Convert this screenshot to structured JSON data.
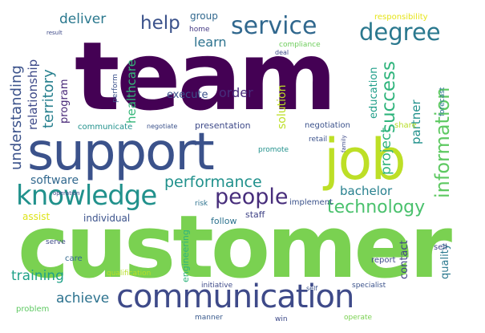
{
  "words": [
    {
      "id": "team",
      "text": "team",
      "color": "#440154"
    },
    {
      "id": "customer",
      "text": "customer",
      "color": "#7ad151"
    },
    {
      "id": "support",
      "text": "support",
      "color": "#3b528b"
    },
    {
      "id": "communication",
      "text": "communication",
      "color": "#3e4a89"
    },
    {
      "id": "job",
      "text": "job",
      "color": "#bddf26"
    },
    {
      "id": "knowledge",
      "text": "knowledge",
      "color": "#21918c"
    },
    {
      "id": "service",
      "text": "service",
      "color": "#31688e"
    },
    {
      "id": "degree",
      "text": "degree",
      "color": "#2a788e"
    },
    {
      "id": "people",
      "text": "people",
      "color": "#472d7b"
    },
    {
      "id": "technology",
      "text": "technology",
      "color": "#4ac16d"
    },
    {
      "id": "information",
      "text": "information",
      "color": "#5ec962"
    },
    {
      "id": "success",
      "text": "success",
      "color": "#2fb47c"
    },
    {
      "id": "help",
      "text": "help",
      "color": "#3b528b"
    },
    {
      "id": "performance",
      "text": "performance",
      "color": "#21918c"
    },
    {
      "id": "training",
      "text": "training",
      "color": "#1fa187"
    },
    {
      "id": "achieve",
      "text": "achieve",
      "color": "#2c728e"
    },
    {
      "id": "understanding",
      "text": "understanding",
      "color": "#3b528b"
    },
    {
      "id": "deliver",
      "text": "deliver",
      "color": "#2a788e"
    },
    {
      "id": "territory",
      "text": "territory",
      "color": "#27808e"
    },
    {
      "id": "relationship",
      "text": "relationship",
      "color": "#3e4a89"
    },
    {
      "id": "program",
      "text": "program",
      "color": "#482878"
    },
    {
      "id": "healthcare",
      "text": "healthcare",
      "color": "#35b779"
    },
    {
      "id": "learn",
      "text": "learn",
      "color": "#2c728e"
    },
    {
      "id": "order",
      "text": "order",
      "color": "#472d7b"
    },
    {
      "id": "execute",
      "text": "execute",
      "color": "#3b528b"
    },
    {
      "id": "software",
      "text": "software",
      "color": "#31688e"
    },
    {
      "id": "bachelor",
      "text": "bachelor",
      "color": "#27808e"
    },
    {
      "id": "project",
      "text": "project",
      "color": "#2fb47c"
    },
    {
      "id": "partner",
      "text": "partner",
      "color": "#21918c"
    },
    {
      "id": "education",
      "text": "education",
      "color": "#1f9e89"
    },
    {
      "id": "solution",
      "text": "solution",
      "color": "#bddf26"
    },
    {
      "id": "group",
      "text": "group",
      "color": "#31688e"
    },
    {
      "id": "home",
      "text": "home",
      "color": "#443983"
    },
    {
      "id": "presentation",
      "text": "presentation",
      "color": "#3e4a89"
    },
    {
      "id": "negotiation",
      "text": "negotiation",
      "color": "#3b528b"
    },
    {
      "id": "individual",
      "text": "individual",
      "color": "#3b528b"
    },
    {
      "id": "assist",
      "text": "assist",
      "color": "#dde318"
    },
    {
      "id": "staff",
      "text": "staff",
      "color": "#414487"
    },
    {
      "id": "follow",
      "text": "follow",
      "color": "#2c728e"
    },
    {
      "id": "implement",
      "text": "implement",
      "color": "#3b528b"
    },
    {
      "id": "contact",
      "text": "contact",
      "color": "#414487"
    },
    {
      "id": "quality",
      "text": "quality",
      "color": "#2a788e"
    },
    {
      "id": "report",
      "text": "report",
      "color": "#3e4a89"
    },
    {
      "id": "sell",
      "text": "sell",
      "color": "#414487"
    },
    {
      "id": "retail",
      "text": "retail",
      "color": "#3b528b"
    },
    {
      "id": "share",
      "text": "share",
      "color": "#b8de29"
    },
    {
      "id": "responsibility",
      "text": "responsibility",
      "color": "#e5e419"
    },
    {
      "id": "compliance",
      "text": "compliance",
      "color": "#6ccd5a"
    },
    {
      "id": "communicate",
      "text": "communicate",
      "color": "#21918c"
    },
    {
      "id": "engineering",
      "text": "engineering",
      "color": "#2fb47c"
    },
    {
      "id": "initiative",
      "text": "initiative",
      "color": "#3e4a89"
    },
    {
      "id": "specialist",
      "text": "specialist",
      "color": "#3b528b"
    },
    {
      "id": "manner",
      "text": "manner",
      "color": "#38598c"
    },
    {
      "id": "win",
      "text": "win",
      "color": "#3e4a89"
    },
    {
      "id": "operate",
      "text": "operate",
      "color": "#7ad151"
    },
    {
      "id": "problem",
      "text": "problem",
      "color": "#5ec962"
    },
    {
      "id": "care",
      "text": "care",
      "color": "#31688e"
    },
    {
      "id": "serve",
      "text": "serve",
      "color": "#3e4a89"
    },
    {
      "id": "risk",
      "text": "risk",
      "color": "#2c728e"
    },
    {
      "id": "promote",
      "text": "promote",
      "color": "#21918c"
    },
    {
      "id": "forecast",
      "text": "forecast",
      "color": "#2a788e"
    },
    {
      "id": "perform",
      "text": "perform",
      "color": "#3b528b"
    },
    {
      "id": "qualification",
      "text": "qualification",
      "color": "#b8de29"
    },
    {
      "id": "negotiate",
      "text": "negotiate",
      "color": "#3b528b"
    },
    {
      "id": "deal",
      "text": "deal",
      "color": "#3e4a89"
    },
    {
      "id": "result",
      "text": "result",
      "color": "#3e4a89"
    },
    {
      "id": "operation",
      "text": "operation",
      "color": "#3e4a89"
    },
    {
      "id": "family",
      "text": "family",
      "color": "#3e4a89"
    },
    {
      "id": "self",
      "text": "self",
      "color": "#3b528b"
    }
  ]
}
